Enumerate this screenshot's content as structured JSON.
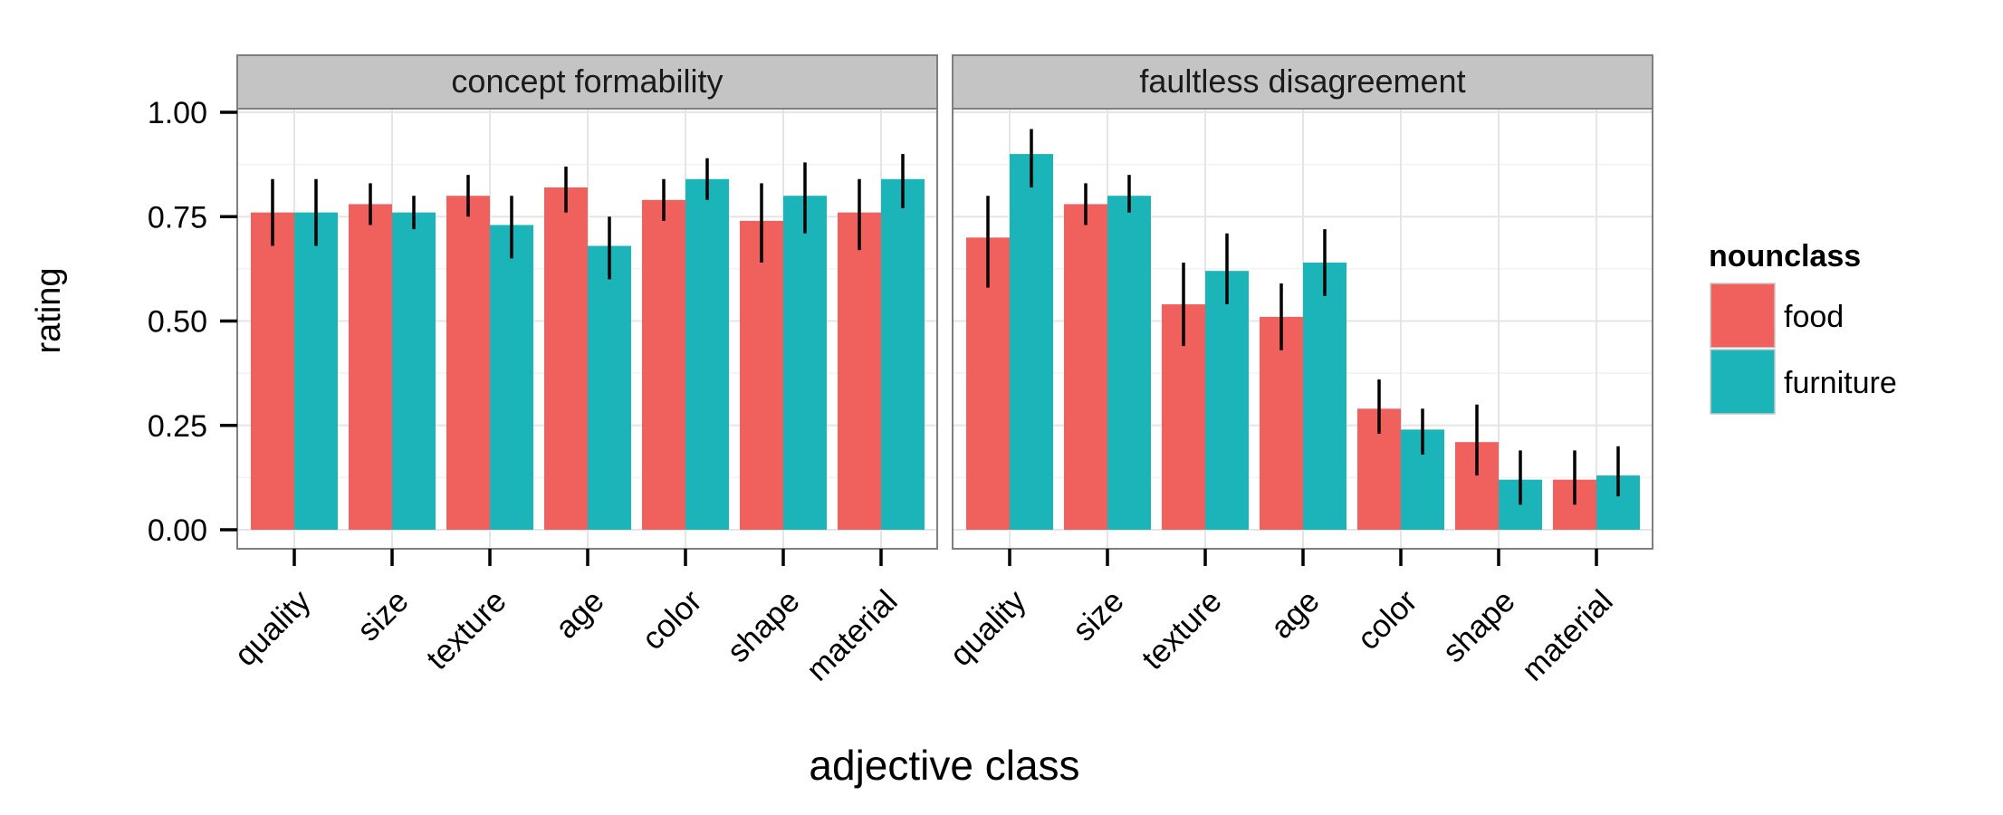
{
  "chart_data": {
    "type": "bar",
    "xlabel": "adjective class",
    "ylabel": "rating",
    "ylim": [
      0,
      1.0
    ],
    "yticks": [
      "0.00",
      "0.25",
      "0.50",
      "0.75",
      "1.00"
    ],
    "ytick_values": [
      0,
      0.25,
      0.5,
      0.75,
      1.0
    ],
    "categories": [
      "quality",
      "size",
      "texture",
      "age",
      "color",
      "shape",
      "material"
    ],
    "grid": true,
    "legend": {
      "title": "nounclass",
      "placement": "right",
      "entries": [
        "food",
        "furniture"
      ]
    },
    "colors": {
      "food": "#F0605D",
      "furniture": "#1BB4B9",
      "strip_bg": "#C4C4C4",
      "panel_bg": "#FFFFFF",
      "grid_major": "#E5E5E5",
      "grid_minor": "#F3F3F3",
      "errorbar": "#000000"
    },
    "panels": [
      {
        "strip": "concept formability",
        "series": [
          {
            "name": "food",
            "values": [
              0.76,
              0.78,
              0.8,
              0.82,
              0.79,
              0.74,
              0.76
            ],
            "err_low": [
              0.68,
              0.73,
              0.75,
              0.76,
              0.74,
              0.64,
              0.67
            ],
            "err_high": [
              0.84,
              0.83,
              0.85,
              0.87,
              0.84,
              0.83,
              0.84
            ]
          },
          {
            "name": "furniture",
            "values": [
              0.76,
              0.76,
              0.73,
              0.68,
              0.84,
              0.8,
              0.84
            ],
            "err_low": [
              0.68,
              0.72,
              0.65,
              0.6,
              0.79,
              0.71,
              0.77
            ],
            "err_high": [
              0.84,
              0.8,
              0.8,
              0.75,
              0.89,
              0.88,
              0.9
            ]
          }
        ]
      },
      {
        "strip": "faultless disagreement",
        "series": [
          {
            "name": "food",
            "values": [
              0.7,
              0.78,
              0.54,
              0.51,
              0.29,
              0.21,
              0.12
            ],
            "err_low": [
              0.58,
              0.73,
              0.44,
              0.43,
              0.23,
              0.13,
              0.06
            ],
            "err_high": [
              0.8,
              0.83,
              0.64,
              0.59,
              0.36,
              0.3,
              0.19
            ]
          },
          {
            "name": "furniture",
            "values": [
              0.9,
              0.8,
              0.62,
              0.64,
              0.24,
              0.12,
              0.13
            ],
            "err_low": [
              0.82,
              0.76,
              0.54,
              0.56,
              0.18,
              0.06,
              0.08
            ],
            "err_high": [
              0.96,
              0.85,
              0.71,
              0.72,
              0.29,
              0.19,
              0.2
            ]
          }
        ]
      }
    ]
  }
}
